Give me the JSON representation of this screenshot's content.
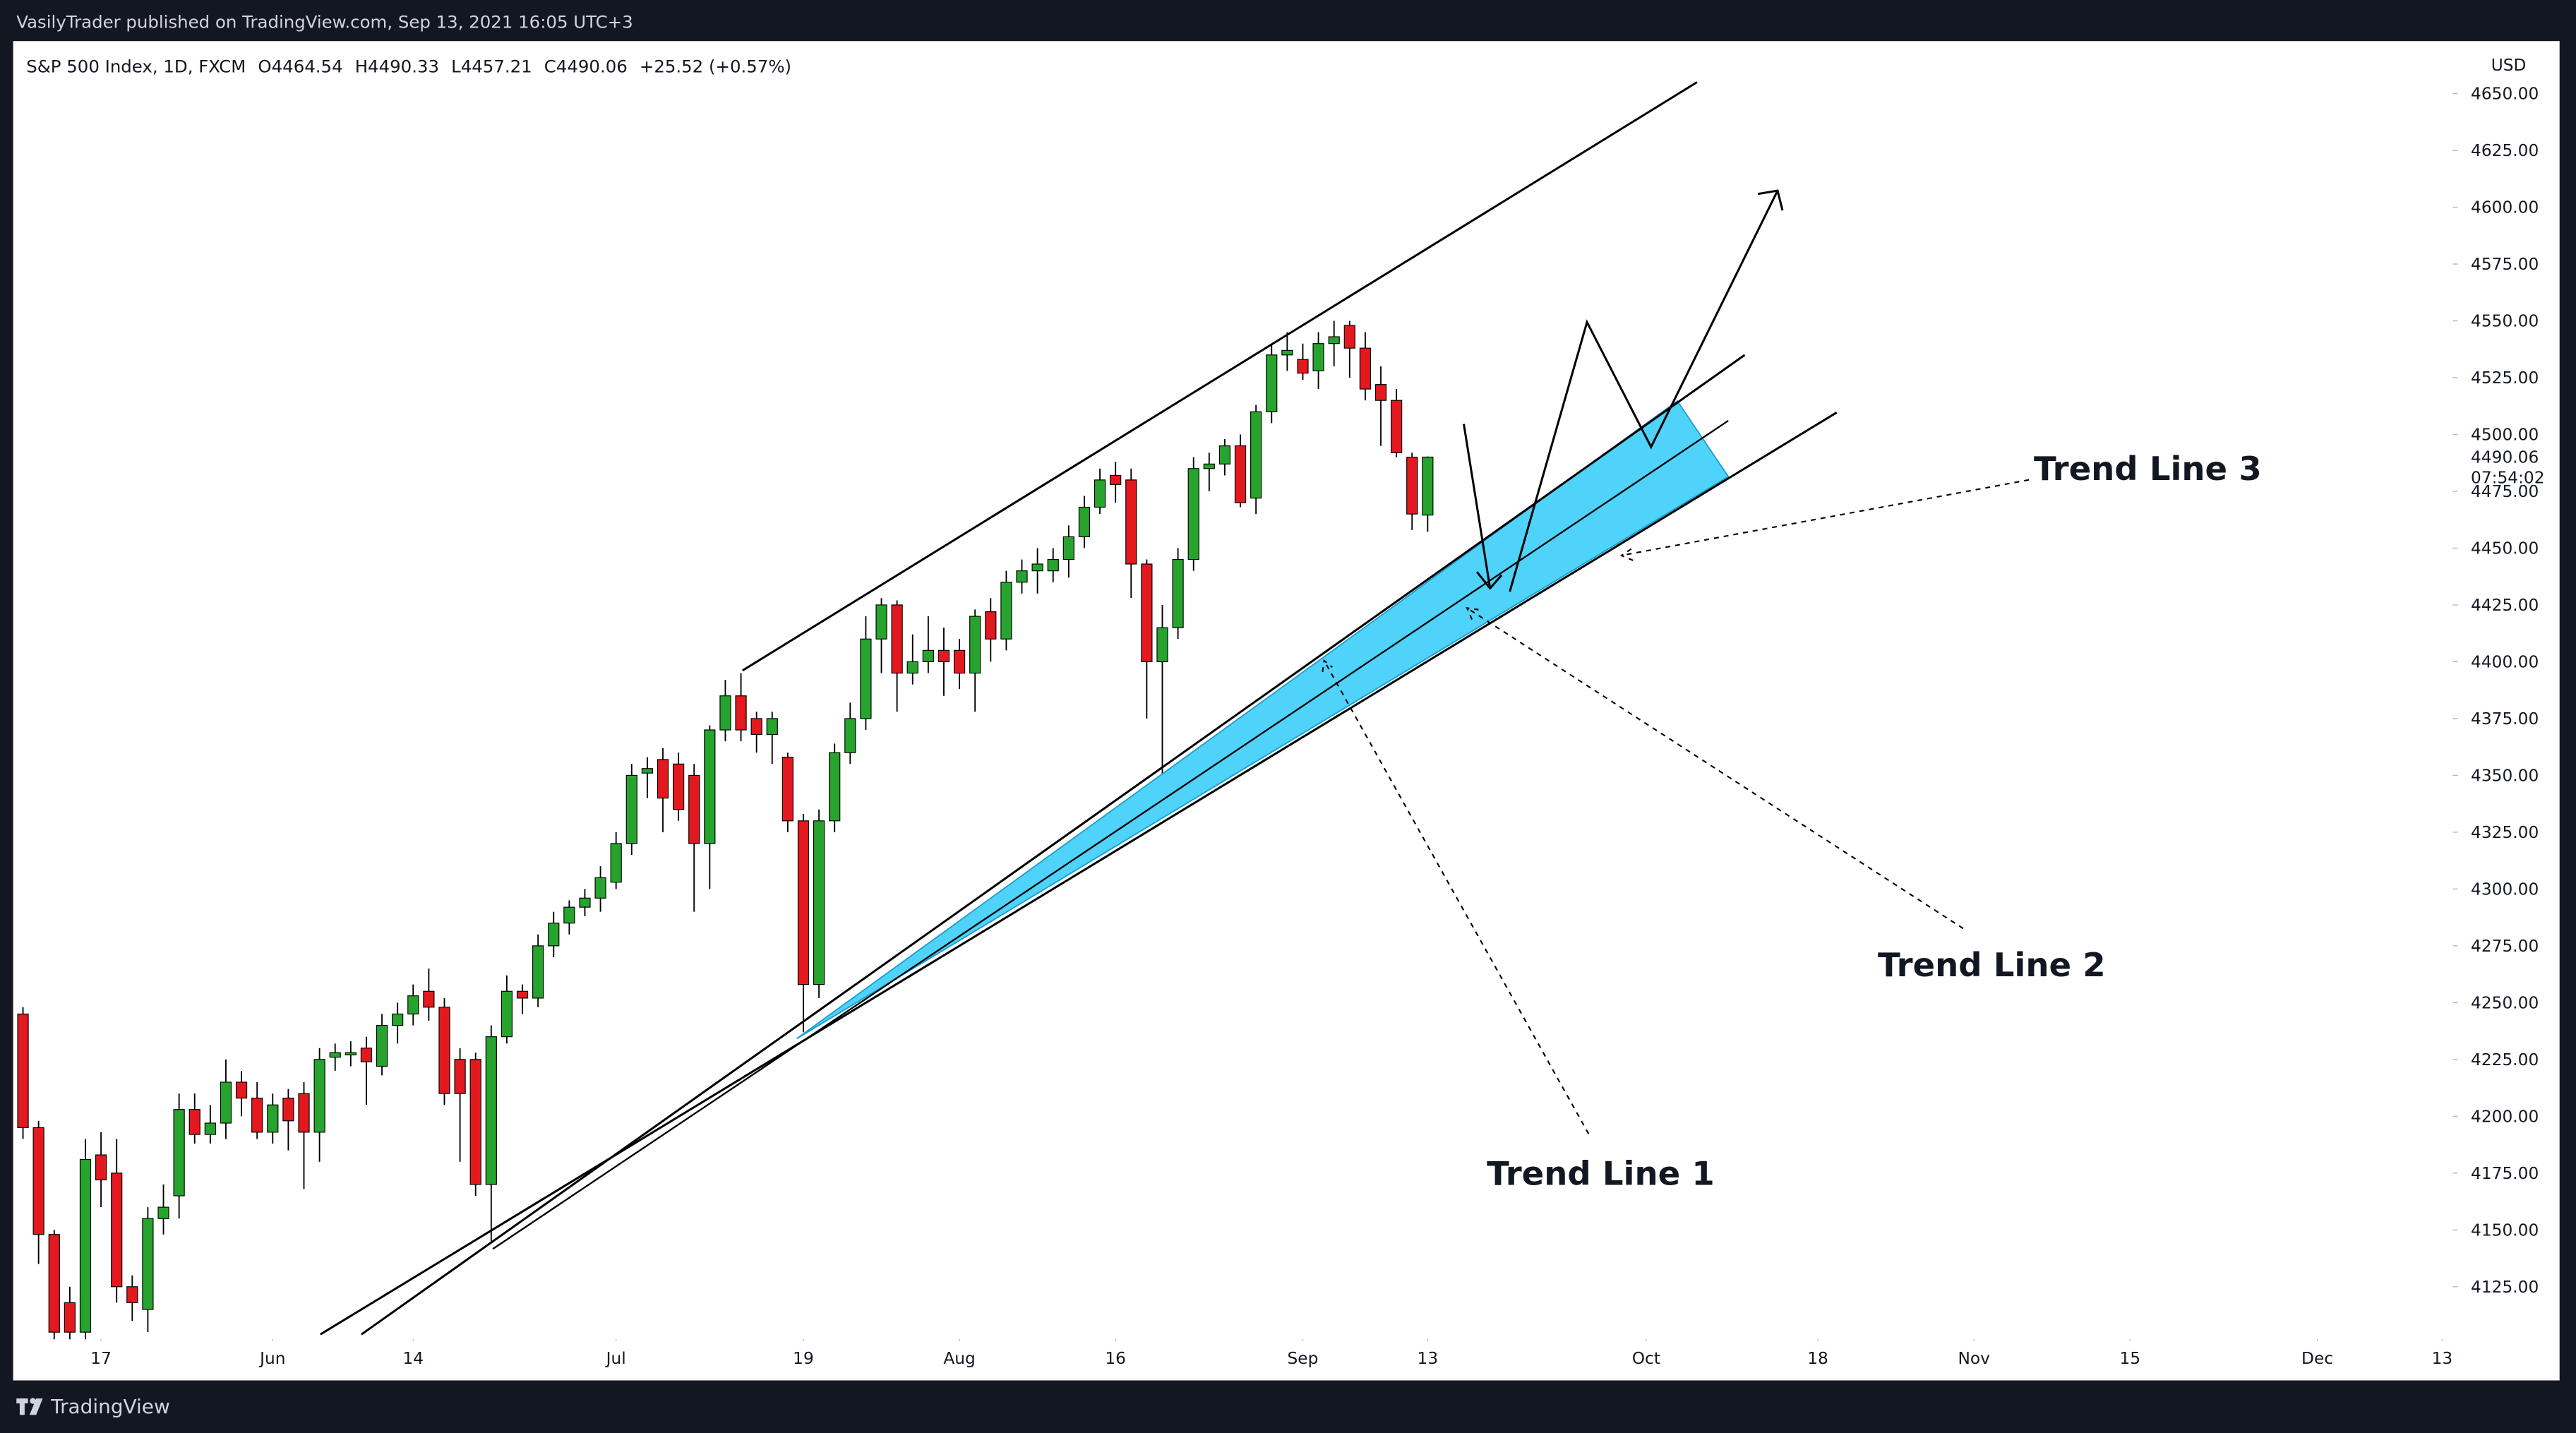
{
  "header": {
    "publisher_line": "VasilyTrader published on TradingView.com, Sep 13, 2021 16:05 UTC+3"
  },
  "chart_data": {
    "type": "candlestick",
    "title": "S&P 500 Index, 1D, FXCM",
    "legend_values": [
      "O4464.54",
      "H4490.33",
      "L4457.21",
      "C4490.06",
      "+25.52 (+0.57%)"
    ],
    "currency": "USD",
    "open": [
      4245,
      4195,
      4148,
      4118,
      4105,
      4183,
      4175,
      4125,
      4115,
      4155,
      4165,
      4203,
      4192,
      4197,
      4215,
      4208,
      4193,
      4208,
      4210,
      4193,
      4226,
      4227,
      4230,
      4222,
      4240,
      4245,
      4255,
      4248,
      4225,
      4225,
      4170,
      4235,
      4255,
      4252,
      4275,
      4285,
      4292,
      4296,
      4303,
      4320,
      4351,
      4357,
      4355,
      4350,
      4320,
      4370,
      4385,
      4375,
      4368,
      4358,
      4330,
      4258,
      4330,
      4360,
      4375,
      4410,
      4425,
      4395,
      4400,
      4405,
      4405,
      4395,
      4422,
      4410,
      4435,
      4440,
      4440,
      4445,
      4455,
      4468,
      4482,
      4480,
      4443,
      4400,
      4415,
      4445,
      4485,
      4487,
      4495,
      4472,
      4510,
      4535,
      4533,
      4528,
      4540,
      4548,
      4538,
      4522,
      4515,
      4490,
      4464.54
    ],
    "high": [
      4248,
      4198,
      4150,
      4125,
      4190,
      4193,
      4190,
      4130,
      4160,
      4170,
      4210,
      4210,
      4205,
      4225,
      4220,
      4215,
      4210,
      4212,
      4215,
      4230,
      4232,
      4233,
      4235,
      4245,
      4250,
      4258,
      4265,
      4252,
      4230,
      4228,
      4240,
      4262,
      4258,
      4280,
      4290,
      4295,
      4300,
      4310,
      4325,
      4355,
      4358,
      4362,
      4360,
      4355,
      4372,
      4392,
      4395,
      4378,
      4378,
      4360,
      4333,
      4335,
      4364,
      4382,
      4420,
      4428,
      4427,
      4412,
      4420,
      4415,
      4410,
      4423,
      4428,
      4440,
      4445,
      4450,
      4450,
      4460,
      4473,
      4485,
      4488,
      4485,
      4445,
      4425,
      4450,
      4490,
      4492,
      4498,
      4500,
      4513,
      4540,
      4545,
      4540,
      4545,
      4550,
      4550,
      4545,
      4530,
      4520,
      4492,
      4490.33
    ],
    "low": [
      4190,
      4135,
      4100,
      4100,
      4100,
      4160,
      4118,
      4110,
      4105,
      4148,
      4155,
      4188,
      4188,
      4190,
      4200,
      4190,
      4188,
      4185,
      4168,
      4180,
      4220,
      4222,
      4205,
      4218,
      4232,
      4240,
      4242,
      4205,
      4180,
      4165,
      4145,
      4232,
      4245,
      4248,
      4270,
      4280,
      4288,
      4290,
      4300,
      4315,
      4340,
      4325,
      4330,
      4290,
      4300,
      4365,
      4365,
      4360,
      4355,
      4325,
      4237,
      4252,
      4325,
      4355,
      4370,
      4395,
      4378,
      4390,
      4395,
      4385,
      4388,
      4378,
      4400,
      4405,
      4430,
      4430,
      4435,
      4437,
      4450,
      4465,
      4470,
      4428,
      4375,
      4350,
      4410,
      4440,
      4475,
      4482,
      4468,
      4465,
      4505,
      4528,
      4524,
      4520,
      4530,
      4525,
      4515,
      4495,
      4490,
      4458,
      4457.21
    ],
    "close": [
      4195,
      4148,
      4105,
      4105,
      4181,
      4172,
      4125,
      4118,
      4155,
      4160,
      4203,
      4192,
      4197,
      4215,
      4208,
      4193,
      4205,
      4198,
      4193,
      4225,
      4228,
      4228,
      4224,
      4240,
      4245,
      4253,
      4248,
      4210,
      4210,
      4170,
      4235,
      4255,
      4252,
      4275,
      4285,
      4292,
      4296,
      4305,
      4320,
      4350,
      4353,
      4340,
      4335,
      4320,
      4370,
      4385,
      4370,
      4368,
      4375,
      4330,
      4258,
      4330,
      4360,
      4375,
      4410,
      4425,
      4395,
      4400,
      4405,
      4400,
      4395,
      4420,
      4410,
      4435,
      4440,
      4443,
      4445,
      4455,
      4468,
      4480,
      4478,
      4443,
      4400,
      4415,
      4445,
      4485,
      4487,
      4495,
      4470,
      4510,
      4535,
      4537,
      4527,
      4540,
      4543,
      4538,
      4520,
      4515,
      4492,
      4465,
      4490.06
    ],
    "up_color": "#26a42e",
    "down_color": "#e3191f",
    "xlim": [
      -0.63,
      155.68
    ],
    "xticks": [
      {
        "value": 5,
        "label": "17"
      },
      {
        "value": 16,
        "label": "Jun"
      },
      {
        "value": 25,
        "label": "14"
      },
      {
        "value": 38,
        "label": "Jul"
      },
      {
        "value": 50,
        "label": "19"
      },
      {
        "value": 60,
        "label": "Aug"
      },
      {
        "value": 70,
        "label": "16"
      },
      {
        "value": 82,
        "label": "Sep"
      },
      {
        "value": 90,
        "label": "13"
      },
      {
        "value": 104,
        "label": "Oct"
      },
      {
        "value": 115,
        "label": "18"
      },
      {
        "value": 125,
        "label": "Nov"
      },
      {
        "value": 135,
        "label": "15"
      },
      {
        "value": 147,
        "label": "Dec"
      },
      {
        "value": 155,
        "label": "13"
      }
    ],
    "ylim": [
      4103.3,
      4673.1
    ],
    "yticks": [
      {
        "value": 4125,
        "label": "4125.00"
      },
      {
        "value": 4150,
        "label": "4150.00"
      },
      {
        "value": 4175,
        "label": "4175.00"
      },
      {
        "value": 4200,
        "label": "4200.00"
      },
      {
        "value": 4225,
        "label": "4225.00"
      },
      {
        "value": 4250,
        "label": "4250.00"
      },
      {
        "value": 4275,
        "label": "4275.00"
      },
      {
        "value": 4300,
        "label": "4300.00"
      },
      {
        "value": 4325,
        "label": "4325.00"
      },
      {
        "value": 4350,
        "label": "4350.00"
      },
      {
        "value": 4375,
        "label": "4375.00"
      },
      {
        "value": 4400,
        "label": "4400.00"
      },
      {
        "value": 4425,
        "label": "4425.00"
      },
      {
        "value": 4450,
        "label": "4450.00"
      },
      {
        "value": 4475,
        "label": "4475.00"
      },
      {
        "value": 4500,
        "label": "4500.00"
      },
      {
        "value": 4525,
        "label": "4525.00"
      },
      {
        "value": 4550,
        "label": "4550.00"
      },
      {
        "value": 4575,
        "label": "4575.00"
      },
      {
        "value": 4600,
        "label": "4600.00"
      },
      {
        "value": 4625,
        "label": "4625.00"
      },
      {
        "value": 4650,
        "label": "4650.00"
      }
    ],
    "last_price": 4490.06,
    "countdown": "07:54:02",
    "annotations": [
      "Trend Line 1",
      "Trend Line 2",
      "Trend Line 3"
    ],
    "grid": false
  },
  "footer": {
    "brand": "TradingView"
  }
}
